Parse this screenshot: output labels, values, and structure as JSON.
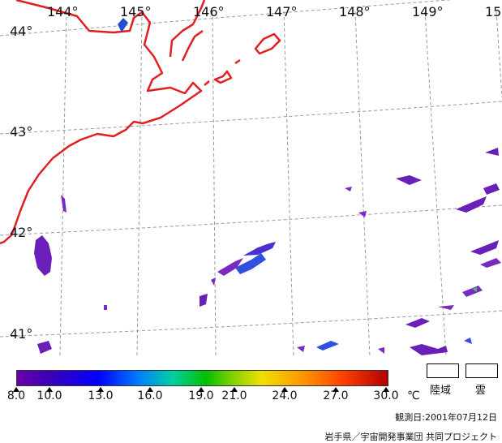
{
  "map": {
    "lon_labels": [
      "144°",
      "145°",
      "146°",
      "147°",
      "148°",
      "149°",
      "15"
    ],
    "lat_labels": [
      "44°",
      "43°",
      "42°",
      "41°"
    ],
    "coastline_color": "#e02020",
    "grid_color": "#9a9a9a",
    "icons": [
      "sea-surface-temperature-patch",
      "coastline",
      "graticule"
    ]
  },
  "legend": {
    "ticks": [
      "8.0",
      "10.0",
      "13.0",
      "16.0",
      "19.0",
      "21.0",
      "24.0",
      "27.0",
      "30.0"
    ],
    "unit": "℃",
    "land_label": "陸域",
    "cloud_label": "雲"
  },
  "footer": {
    "date_line": "観測日:2001年07月12日",
    "credit_line": "岩手県／宇宙開発事業団 共同プロジェクト"
  }
}
